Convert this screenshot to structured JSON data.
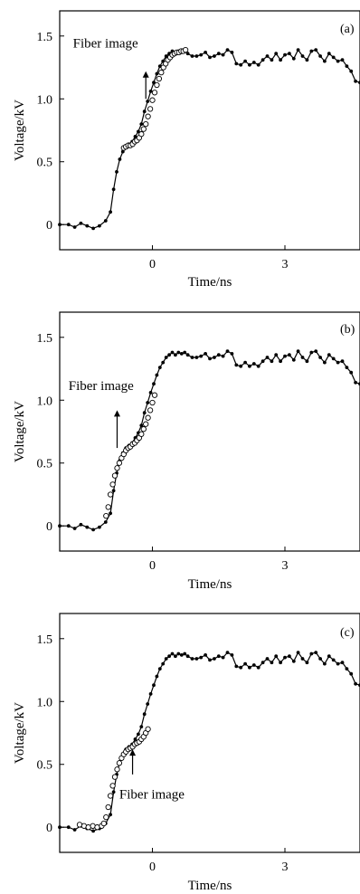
{
  "chart_data": [
    {
      "type": "line",
      "panel_label": "(a)",
      "xlabel": "Time/ns",
      "ylabel": "Voltage/kV",
      "xlim": [
        -2.1,
        4.7
      ],
      "ylim": [
        -0.2,
        1.7
      ],
      "xticks": [
        0,
        3
      ],
      "xtick_labels": [
        "0",
        "3"
      ],
      "yticks": [
        0,
        0.5,
        1.0,
        1.5
      ],
      "ytick_labels": [
        "0",
        "0.5",
        "1.0",
        "1.5"
      ],
      "annotation": {
        "text": "Fiber image",
        "x": -1.8,
        "y": 1.41,
        "arrow_x": -0.15,
        "arrow_y_from": 1.0,
        "arrow_y_to": 1.22
      },
      "series": [
        {
          "marker": "filled",
          "x": [
            -2.1,
            -1.9,
            -1.76,
            -1.62,
            -1.48,
            -1.34,
            -1.2,
            -1.06,
            -0.95,
            -0.88,
            -0.81,
            -0.74,
            -0.67,
            -0.6,
            -0.53,
            -0.46,
            -0.39,
            -0.32,
            -0.25,
            -0.18,
            -0.11,
            -0.04,
            0.03,
            0.1,
            0.17,
            0.24,
            0.31,
            0.38,
            0.45,
            0.52,
            0.59,
            0.66,
            0.73,
            0.8,
            0.9,
            1.0,
            1.1,
            1.2,
            1.3,
            1.4,
            1.5,
            1.6,
            1.7,
            1.8,
            1.9,
            2.0,
            2.1,
            2.2,
            2.3,
            2.4,
            2.5,
            2.6,
            2.7,
            2.8,
            2.9,
            3.0,
            3.1,
            3.2,
            3.3,
            3.4,
            3.5,
            3.6,
            3.7,
            3.8,
            3.9,
            4.0,
            4.1,
            4.2,
            4.3,
            4.4,
            4.5,
            4.6,
            4.7
          ],
          "y": [
            0.0,
            0.0,
            -0.02,
            0.01,
            -0.01,
            -0.03,
            -0.01,
            0.03,
            0.1,
            0.28,
            0.42,
            0.52,
            0.58,
            0.62,
            0.64,
            0.66,
            0.7,
            0.74,
            0.8,
            0.9,
            0.98,
            1.06,
            1.13,
            1.2,
            1.26,
            1.3,
            1.34,
            1.36,
            1.38,
            1.36,
            1.38,
            1.37,
            1.38,
            1.36,
            1.34,
            1.34,
            1.35,
            1.37,
            1.33,
            1.34,
            1.36,
            1.35,
            1.39,
            1.37,
            1.28,
            1.27,
            1.3,
            1.27,
            1.29,
            1.27,
            1.31,
            1.34,
            1.31,
            1.36,
            1.31,
            1.35,
            1.36,
            1.32,
            1.39,
            1.34,
            1.31,
            1.38,
            1.39,
            1.34,
            1.3,
            1.36,
            1.33,
            1.3,
            1.31,
            1.26,
            1.22,
            1.14,
            1.13
          ]
        },
        {
          "marker": "open",
          "x": [
            -0.65,
            -0.6,
            -0.55,
            -0.5,
            -0.45,
            -0.4,
            -0.35,
            -0.3,
            -0.25,
            -0.2,
            -0.15,
            -0.1,
            -0.05,
            0.0,
            0.05,
            0.1,
            0.15,
            0.2,
            0.25,
            0.3,
            0.35,
            0.4,
            0.45,
            0.5,
            0.55,
            0.6,
            0.65,
            0.7,
            0.75
          ],
          "y": [
            0.61,
            0.62,
            0.63,
            0.63,
            0.64,
            0.66,
            0.67,
            0.69,
            0.72,
            0.76,
            0.8,
            0.86,
            0.92,
            0.99,
            1.05,
            1.11,
            1.16,
            1.21,
            1.25,
            1.28,
            1.31,
            1.33,
            1.35,
            1.36,
            1.37,
            1.37,
            1.38,
            1.38,
            1.39
          ]
        }
      ]
    },
    {
      "type": "line",
      "panel_label": "(b)",
      "xlabel": "Time/ns",
      "ylabel": "Voltage/kV",
      "xlim": [
        -2.1,
        4.7
      ],
      "ylim": [
        -0.2,
        1.7
      ],
      "xticks": [
        0,
        3
      ],
      "xtick_labels": [
        "0",
        "3"
      ],
      "yticks": [
        0,
        0.5,
        1.0,
        1.5
      ],
      "ytick_labels": [
        "0",
        "0.5",
        "1.0",
        "1.5"
      ],
      "annotation": {
        "text": "Fiber image",
        "x": -1.9,
        "y": 1.08,
        "arrow_x": -0.8,
        "arrow_y_from": 0.62,
        "arrow_y_to": 0.92
      },
      "series": [
        {
          "marker": "filled",
          "x": [
            -2.1,
            -1.9,
            -1.76,
            -1.62,
            -1.48,
            -1.34,
            -1.2,
            -1.06,
            -0.95,
            -0.88,
            -0.81,
            -0.74,
            -0.67,
            -0.6,
            -0.53,
            -0.46,
            -0.39,
            -0.32,
            -0.25,
            -0.18,
            -0.11,
            -0.04,
            0.03,
            0.1,
            0.17,
            0.24,
            0.31,
            0.38,
            0.45,
            0.52,
            0.59,
            0.66,
            0.73,
            0.8,
            0.9,
            1.0,
            1.1,
            1.2,
            1.3,
            1.4,
            1.5,
            1.6,
            1.7,
            1.8,
            1.9,
            2.0,
            2.1,
            2.2,
            2.3,
            2.4,
            2.5,
            2.6,
            2.7,
            2.8,
            2.9,
            3.0,
            3.1,
            3.2,
            3.3,
            3.4,
            3.5,
            3.6,
            3.7,
            3.8,
            3.9,
            4.0,
            4.1,
            4.2,
            4.3,
            4.4,
            4.5,
            4.6,
            4.7
          ],
          "y": [
            0.0,
            0.0,
            -0.02,
            0.01,
            -0.01,
            -0.03,
            -0.01,
            0.03,
            0.1,
            0.28,
            0.42,
            0.52,
            0.58,
            0.62,
            0.64,
            0.66,
            0.7,
            0.74,
            0.8,
            0.9,
            0.98,
            1.06,
            1.13,
            1.2,
            1.26,
            1.3,
            1.34,
            1.36,
            1.38,
            1.36,
            1.38,
            1.37,
            1.38,
            1.36,
            1.34,
            1.34,
            1.35,
            1.37,
            1.33,
            1.34,
            1.36,
            1.35,
            1.39,
            1.37,
            1.28,
            1.27,
            1.3,
            1.27,
            1.29,
            1.27,
            1.31,
            1.34,
            1.31,
            1.36,
            1.31,
            1.35,
            1.36,
            1.32,
            1.39,
            1.34,
            1.31,
            1.38,
            1.39,
            1.34,
            1.3,
            1.36,
            1.33,
            1.3,
            1.31,
            1.26,
            1.22,
            1.14,
            1.13
          ]
        },
        {
          "marker": "open",
          "x": [
            -1.05,
            -1.0,
            -0.95,
            -0.9,
            -0.85,
            -0.8,
            -0.75,
            -0.7,
            -0.65,
            -0.6,
            -0.55,
            -0.5,
            -0.45,
            -0.4,
            -0.35,
            -0.3,
            -0.25,
            -0.2,
            -0.15,
            -0.1,
            -0.05,
            0.0,
            0.05
          ],
          "y": [
            0.08,
            0.15,
            0.25,
            0.33,
            0.4,
            0.46,
            0.5,
            0.54,
            0.57,
            0.6,
            0.62,
            0.63,
            0.65,
            0.66,
            0.68,
            0.7,
            0.73,
            0.77,
            0.81,
            0.86,
            0.92,
            0.98,
            1.04
          ]
        }
      ]
    },
    {
      "type": "line",
      "panel_label": "(c)",
      "xlabel": "Time/ns",
      "ylabel": "Voltage/kV",
      "xlim": [
        -2.1,
        4.7
      ],
      "ylim": [
        -0.2,
        1.7
      ],
      "xticks": [
        0,
        3
      ],
      "xtick_labels": [
        "0",
        "3"
      ],
      "yticks": [
        0,
        0.5,
        1.0,
        1.5
      ],
      "ytick_labels": [
        "0",
        "0.5",
        "1.0",
        "1.5"
      ],
      "annotation": {
        "text": "Fiber image",
        "x": -0.75,
        "y": 0.23,
        "arrow_x": -0.45,
        "arrow_y_from": 0.42,
        "arrow_y_to": 0.62
      },
      "series": [
        {
          "marker": "filled",
          "x": [
            -2.1,
            -1.9,
            -1.76,
            -1.62,
            -1.48,
            -1.34,
            -1.2,
            -1.06,
            -0.95,
            -0.88,
            -0.81,
            -0.74,
            -0.67,
            -0.6,
            -0.53,
            -0.46,
            -0.39,
            -0.32,
            -0.25,
            -0.18,
            -0.11,
            -0.04,
            0.03,
            0.1,
            0.17,
            0.24,
            0.31,
            0.38,
            0.45,
            0.52,
            0.59,
            0.66,
            0.73,
            0.8,
            0.9,
            1.0,
            1.1,
            1.2,
            1.3,
            1.4,
            1.5,
            1.6,
            1.7,
            1.8,
            1.9,
            2.0,
            2.1,
            2.2,
            2.3,
            2.4,
            2.5,
            2.6,
            2.7,
            2.8,
            2.9,
            3.0,
            3.1,
            3.2,
            3.3,
            3.4,
            3.5,
            3.6,
            3.7,
            3.8,
            3.9,
            4.0,
            4.1,
            4.2,
            4.3,
            4.4,
            4.5,
            4.6,
            4.7
          ],
          "y": [
            0.0,
            0.0,
            -0.02,
            0.01,
            -0.01,
            -0.03,
            -0.01,
            0.03,
            0.1,
            0.28,
            0.42,
            0.52,
            0.58,
            0.62,
            0.64,
            0.66,
            0.7,
            0.74,
            0.8,
            0.9,
            0.98,
            1.06,
            1.13,
            1.2,
            1.26,
            1.3,
            1.34,
            1.36,
            1.38,
            1.36,
            1.38,
            1.37,
            1.38,
            1.36,
            1.34,
            1.34,
            1.35,
            1.37,
            1.33,
            1.34,
            1.36,
            1.35,
            1.39,
            1.37,
            1.28,
            1.27,
            1.3,
            1.27,
            1.29,
            1.27,
            1.31,
            1.34,
            1.31,
            1.36,
            1.31,
            1.35,
            1.36,
            1.32,
            1.39,
            1.34,
            1.31,
            1.38,
            1.39,
            1.34,
            1.3,
            1.36,
            1.33,
            1.3,
            1.31,
            1.26,
            1.22,
            1.14,
            1.13
          ]
        },
        {
          "marker": "open",
          "x": [
            -1.65,
            -1.55,
            -1.45,
            -1.35,
            -1.25,
            -1.15,
            -1.1,
            -1.05,
            -1.0,
            -0.95,
            -0.9,
            -0.85,
            -0.8,
            -0.75,
            -0.7,
            -0.65,
            -0.6,
            -0.55,
            -0.5,
            -0.45,
            -0.4,
            -0.35,
            -0.3,
            -0.25,
            -0.2,
            -0.15,
            -0.1
          ],
          "y": [
            0.02,
            0.01,
            0.0,
            0.01,
            0.0,
            0.01,
            0.03,
            0.08,
            0.16,
            0.25,
            0.33,
            0.4,
            0.46,
            0.51,
            0.55,
            0.58,
            0.6,
            0.62,
            0.63,
            0.64,
            0.66,
            0.67,
            0.68,
            0.7,
            0.72,
            0.75,
            0.78
          ]
        }
      ]
    }
  ]
}
